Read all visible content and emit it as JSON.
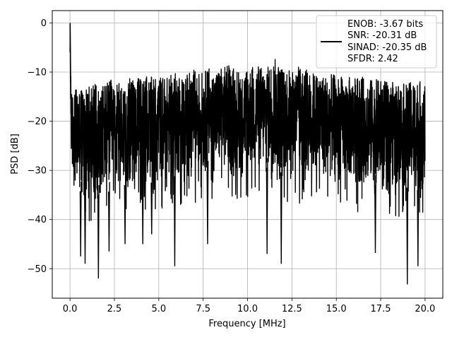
{
  "chart_data": {
    "type": "line",
    "title": "",
    "xlabel": "Frequency [MHz]",
    "ylabel": "PSD [dB]",
    "xlim": [
      -1.0,
      21.0
    ],
    "ylim": [
      -56.0,
      2.5
    ],
    "xticks": [
      0.0,
      2.5,
      5.0,
      7.5,
      10.0,
      12.5,
      15.0,
      17.5,
      20.0
    ],
    "xtick_labels": [
      "0.0",
      "2.5",
      "5.0",
      "7.5",
      "10.0",
      "12.5",
      "15.0",
      "17.5",
      "20.0"
    ],
    "yticks": [
      0,
      -10,
      -20,
      -30,
      -40,
      -50
    ],
    "ytick_labels": [
      "0",
      "−10",
      "−20",
      "−30",
      "−40",
      "−50"
    ],
    "grid": true,
    "legend_position": "upper right",
    "legend_lines": [
      "ENOB: -3.67 bits",
      "SNR: -20.31 dB",
      "SINAD: -20.35 dB",
      "SFDR: 2.42"
    ],
    "series_color": "#000000",
    "series": [
      {
        "x": [
          0.0,
          0.05,
          0.1,
          0.15,
          0.2,
          0.3,
          0.5,
          0.7,
          1.0,
          1.5,
          1.6,
          2.0,
          2.3,
          2.5,
          3.0,
          3.1,
          3.5,
          4.0,
          4.6,
          5.0,
          5.5,
          6.0,
          6.5,
          7.0,
          7.5,
          7.8,
          8.0,
          8.5,
          9.0,
          9.5,
          10.0,
          10.5,
          11.1,
          11.5,
          12.0,
          12.5,
          13.0,
          13.5,
          14.0,
          14.5,
          15.0,
          15.5,
          16.0,
          16.5,
          17.0,
          17.5,
          18.0,
          18.5,
          19.0,
          19.5,
          20.0
        ],
        "y_upper": [
          0.0,
          -9.0,
          -15.0,
          -14.0,
          -12.5,
          -13.5,
          -13.0,
          -12.5,
          -13.0,
          -12.0,
          -12.5,
          -12.0,
          -11.5,
          -12.5,
          -12.0,
          -11.0,
          -11.5,
          -10.5,
          -11.0,
          -10.5,
          -11.0,
          -10.0,
          -10.5,
          -9.5,
          -10.0,
          -9.0,
          -9.5,
          -9.0,
          -8.5,
          -9.5,
          -9.0,
          -8.5,
          -9.0,
          -7.0,
          -9.0,
          -9.5,
          -8.5,
          -10.0,
          -10.0,
          -10.5,
          -10.5,
          -11.0,
          -11.0,
          -11.0,
          -11.5,
          -11.5,
          -12.0,
          -12.0,
          -12.5,
          -11.0,
          -13.0
        ],
        "y_lower": [
          -6.0,
          -25.0,
          -30.0,
          -32.0,
          -33.0,
          -34.0,
          -34.5,
          -34.0,
          -35.0,
          -34.5,
          -35.0,
          -34.0,
          -34.5,
          -33.5,
          -34.0,
          -33.0,
          -33.0,
          -32.0,
          -32.5,
          -31.5,
          -32.0,
          -31.0,
          -31.5,
          -31.0,
          -30.5,
          -30.0,
          -30.5,
          -30.0,
          -29.5,
          -30.0,
          -29.5,
          -30.0,
          -29.5,
          -30.0,
          -30.5,
          -30.5,
          -31.0,
          -31.0,
          -31.5,
          -31.5,
          -32.0,
          -32.0,
          -32.5,
          -32.5,
          -33.0,
          -33.0,
          -33.0,
          -33.5,
          -33.5,
          -34.0,
          -34.0
        ],
        "dips": [
          [
            0.6,
            -47.5
          ],
          [
            0.85,
            -49.0
          ],
          [
            1.6,
            -52.0
          ],
          [
            2.2,
            -46.5
          ],
          [
            3.1,
            -45.0
          ],
          [
            4.1,
            -45.0
          ],
          [
            4.6,
            -43.0
          ],
          [
            5.9,
            -49.5
          ],
          [
            7.75,
            -45.0
          ],
          [
            11.1,
            -47.0
          ],
          [
            11.9,
            -49.0
          ],
          [
            17.2,
            -46.8
          ],
          [
            19.0,
            -53.2
          ],
          [
            19.6,
            -49.5
          ]
        ]
      }
    ]
  }
}
